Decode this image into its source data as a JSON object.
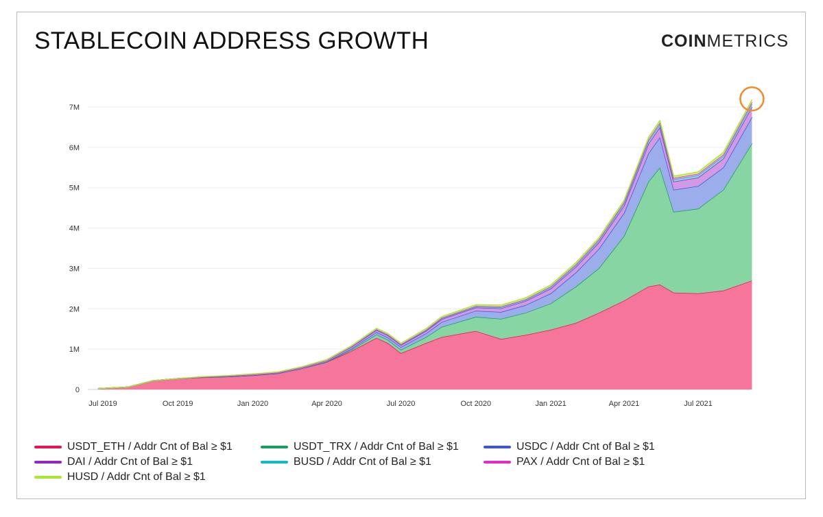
{
  "header": {
    "title": "STABLECOIN ADDRESS GROWTH",
    "logo_bold": "COIN",
    "logo_light": "METRICS"
  },
  "chart_data": {
    "type": "area",
    "stacked": true,
    "title": "STABLECOIN ADDRESS GROWTH",
    "xlabel": "",
    "ylabel": "",
    "ylim": [
      0,
      7000000
    ],
    "yticks": [
      {
        "value": 0,
        "label": "0"
      },
      {
        "value": 1000000,
        "label": "1M"
      },
      {
        "value": 2000000,
        "label": "2M"
      },
      {
        "value": 3000000,
        "label": "3M"
      },
      {
        "value": 4000000,
        "label": "4M"
      },
      {
        "value": 5000000,
        "label": "5M"
      },
      {
        "value": 6000000,
        "label": "6M"
      },
      {
        "value": 7000000,
        "label": "7M"
      }
    ],
    "xticks": [
      {
        "date": "2019-07-01",
        "label": "Jul 2019"
      },
      {
        "date": "2019-10-01",
        "label": "Oct 2019"
      },
      {
        "date": "2020-01-01",
        "label": "Jan 2020"
      },
      {
        "date": "2020-04-01",
        "label": "Apr 2020"
      },
      {
        "date": "2020-07-01",
        "label": "Jul 2020"
      },
      {
        "date": "2020-10-01",
        "label": "Oct 2020"
      },
      {
        "date": "2021-01-01",
        "label": "Jan 2021"
      },
      {
        "date": "2021-04-01",
        "label": "Apr 2021"
      },
      {
        "date": "2021-07-01",
        "label": "Jul 2021"
      }
    ],
    "grid": "horizontal",
    "legend_position": "bottom",
    "highlight": {
      "date": "2021-09-05",
      "value": 7200000,
      "color": "#f08a2c"
    },
    "x": [
      "2019-06-25",
      "2019-08-01",
      "2019-09-01",
      "2019-10-01",
      "2019-11-01",
      "2019-12-01",
      "2020-01-01",
      "2020-02-01",
      "2020-03-01",
      "2020-04-01",
      "2020-05-01",
      "2020-06-01",
      "2020-06-15",
      "2020-07-01",
      "2020-08-01",
      "2020-08-20",
      "2020-10-01",
      "2020-11-01",
      "2020-12-01",
      "2021-01-01",
      "2021-02-01",
      "2021-03-01",
      "2021-04-01",
      "2021-05-01",
      "2021-05-15",
      "2021-06-01",
      "2021-07-01",
      "2021-08-01",
      "2021-09-05"
    ],
    "series": [
      {
        "name": "USDT_ETH / Addr Cnt of Bal ≥ $1",
        "color": "#e8144d",
        "fill": "#f5769a",
        "values": [
          20000,
          60000,
          220000,
          270000,
          300000,
          320000,
          350000,
          400000,
          520000,
          680000,
          950000,
          1280000,
          1150000,
          900000,
          1150000,
          1300000,
          1450000,
          1250000,
          1350000,
          1480000,
          1650000,
          1900000,
          2200000,
          2550000,
          2600000,
          2400000,
          2380000,
          2450000,
          2700000
        ]
      },
      {
        "name": "USDT_TRX / Addr Cnt of Bal ≥ $1",
        "color": "#14a05a",
        "fill": "#88d5a4",
        "values": [
          0,
          0,
          0,
          0,
          0,
          0,
          0,
          0,
          0,
          0,
          30000,
          80000,
          80000,
          80000,
          150000,
          250000,
          350000,
          500000,
          550000,
          650000,
          900000,
          1100000,
          1600000,
          2600000,
          2900000,
          2000000,
          2100000,
          2500000,
          3400000
        ]
      },
      {
        "name": "USDC / Addr Cnt of Bal ≥ $1",
        "color": "#3b56d6",
        "fill": "#9cadec",
        "values": [
          0,
          0,
          0,
          0,
          0,
          0,
          0,
          0,
          0,
          10000,
          30000,
          60000,
          60000,
          70000,
          90000,
          120000,
          150000,
          170000,
          190000,
          250000,
          350000,
          480000,
          570000,
          700000,
          750000,
          550000,
          560000,
          550000,
          650000
        ]
      },
      {
        "name": "DAI / Addr Cnt of Bal ≥ $1",
        "color": "#9a22c4",
        "fill": "#d19ae4",
        "values": [
          0,
          0,
          0,
          0,
          10000,
          15000,
          20000,
          20000,
          25000,
          30000,
          40000,
          50000,
          50000,
          50000,
          60000,
          70000,
          80000,
          90000,
          100000,
          120000,
          140000,
          160000,
          180000,
          240000,
          250000,
          200000,
          210000,
          220000,
          250000
        ]
      },
      {
        "name": "BUSD / Addr Cnt of Bal ≥ $1",
        "color": "#12b8cc",
        "fill": "#8ad8e2",
        "values": [
          0,
          0,
          0,
          0,
          0,
          0,
          0,
          0,
          0,
          0,
          5000,
          10000,
          10000,
          10000,
          15000,
          20000,
          20000,
          25000,
          25000,
          30000,
          35000,
          40000,
          50000,
          60000,
          65000,
          50000,
          55000,
          60000,
          70000
        ]
      },
      {
        "name": "PAX / Addr Cnt of Bal ≥ $1",
        "color": "#e629c9",
        "fill": "#f09ae2",
        "values": [
          0,
          0,
          0,
          0,
          0,
          0,
          0,
          0,
          0,
          0,
          5000,
          10000,
          10000,
          10000,
          15000,
          15000,
          20000,
          20000,
          20000,
          25000,
          30000,
          35000,
          40000,
          45000,
          50000,
          40000,
          40000,
          45000,
          50000
        ]
      },
      {
        "name": "HUSD / Addr Cnt of Bal ≥ $1",
        "color": "#a8e830",
        "fill": "#cdf386",
        "values": [
          0,
          0,
          0,
          0,
          10000,
          10000,
          15000,
          15000,
          15000,
          20000,
          20000,
          25000,
          25000,
          25000,
          30000,
          30000,
          30000,
          35000,
          35000,
          35000,
          40000,
          40000,
          45000,
          50000,
          50000,
          45000,
          45000,
          50000,
          55000
        ]
      }
    ]
  }
}
